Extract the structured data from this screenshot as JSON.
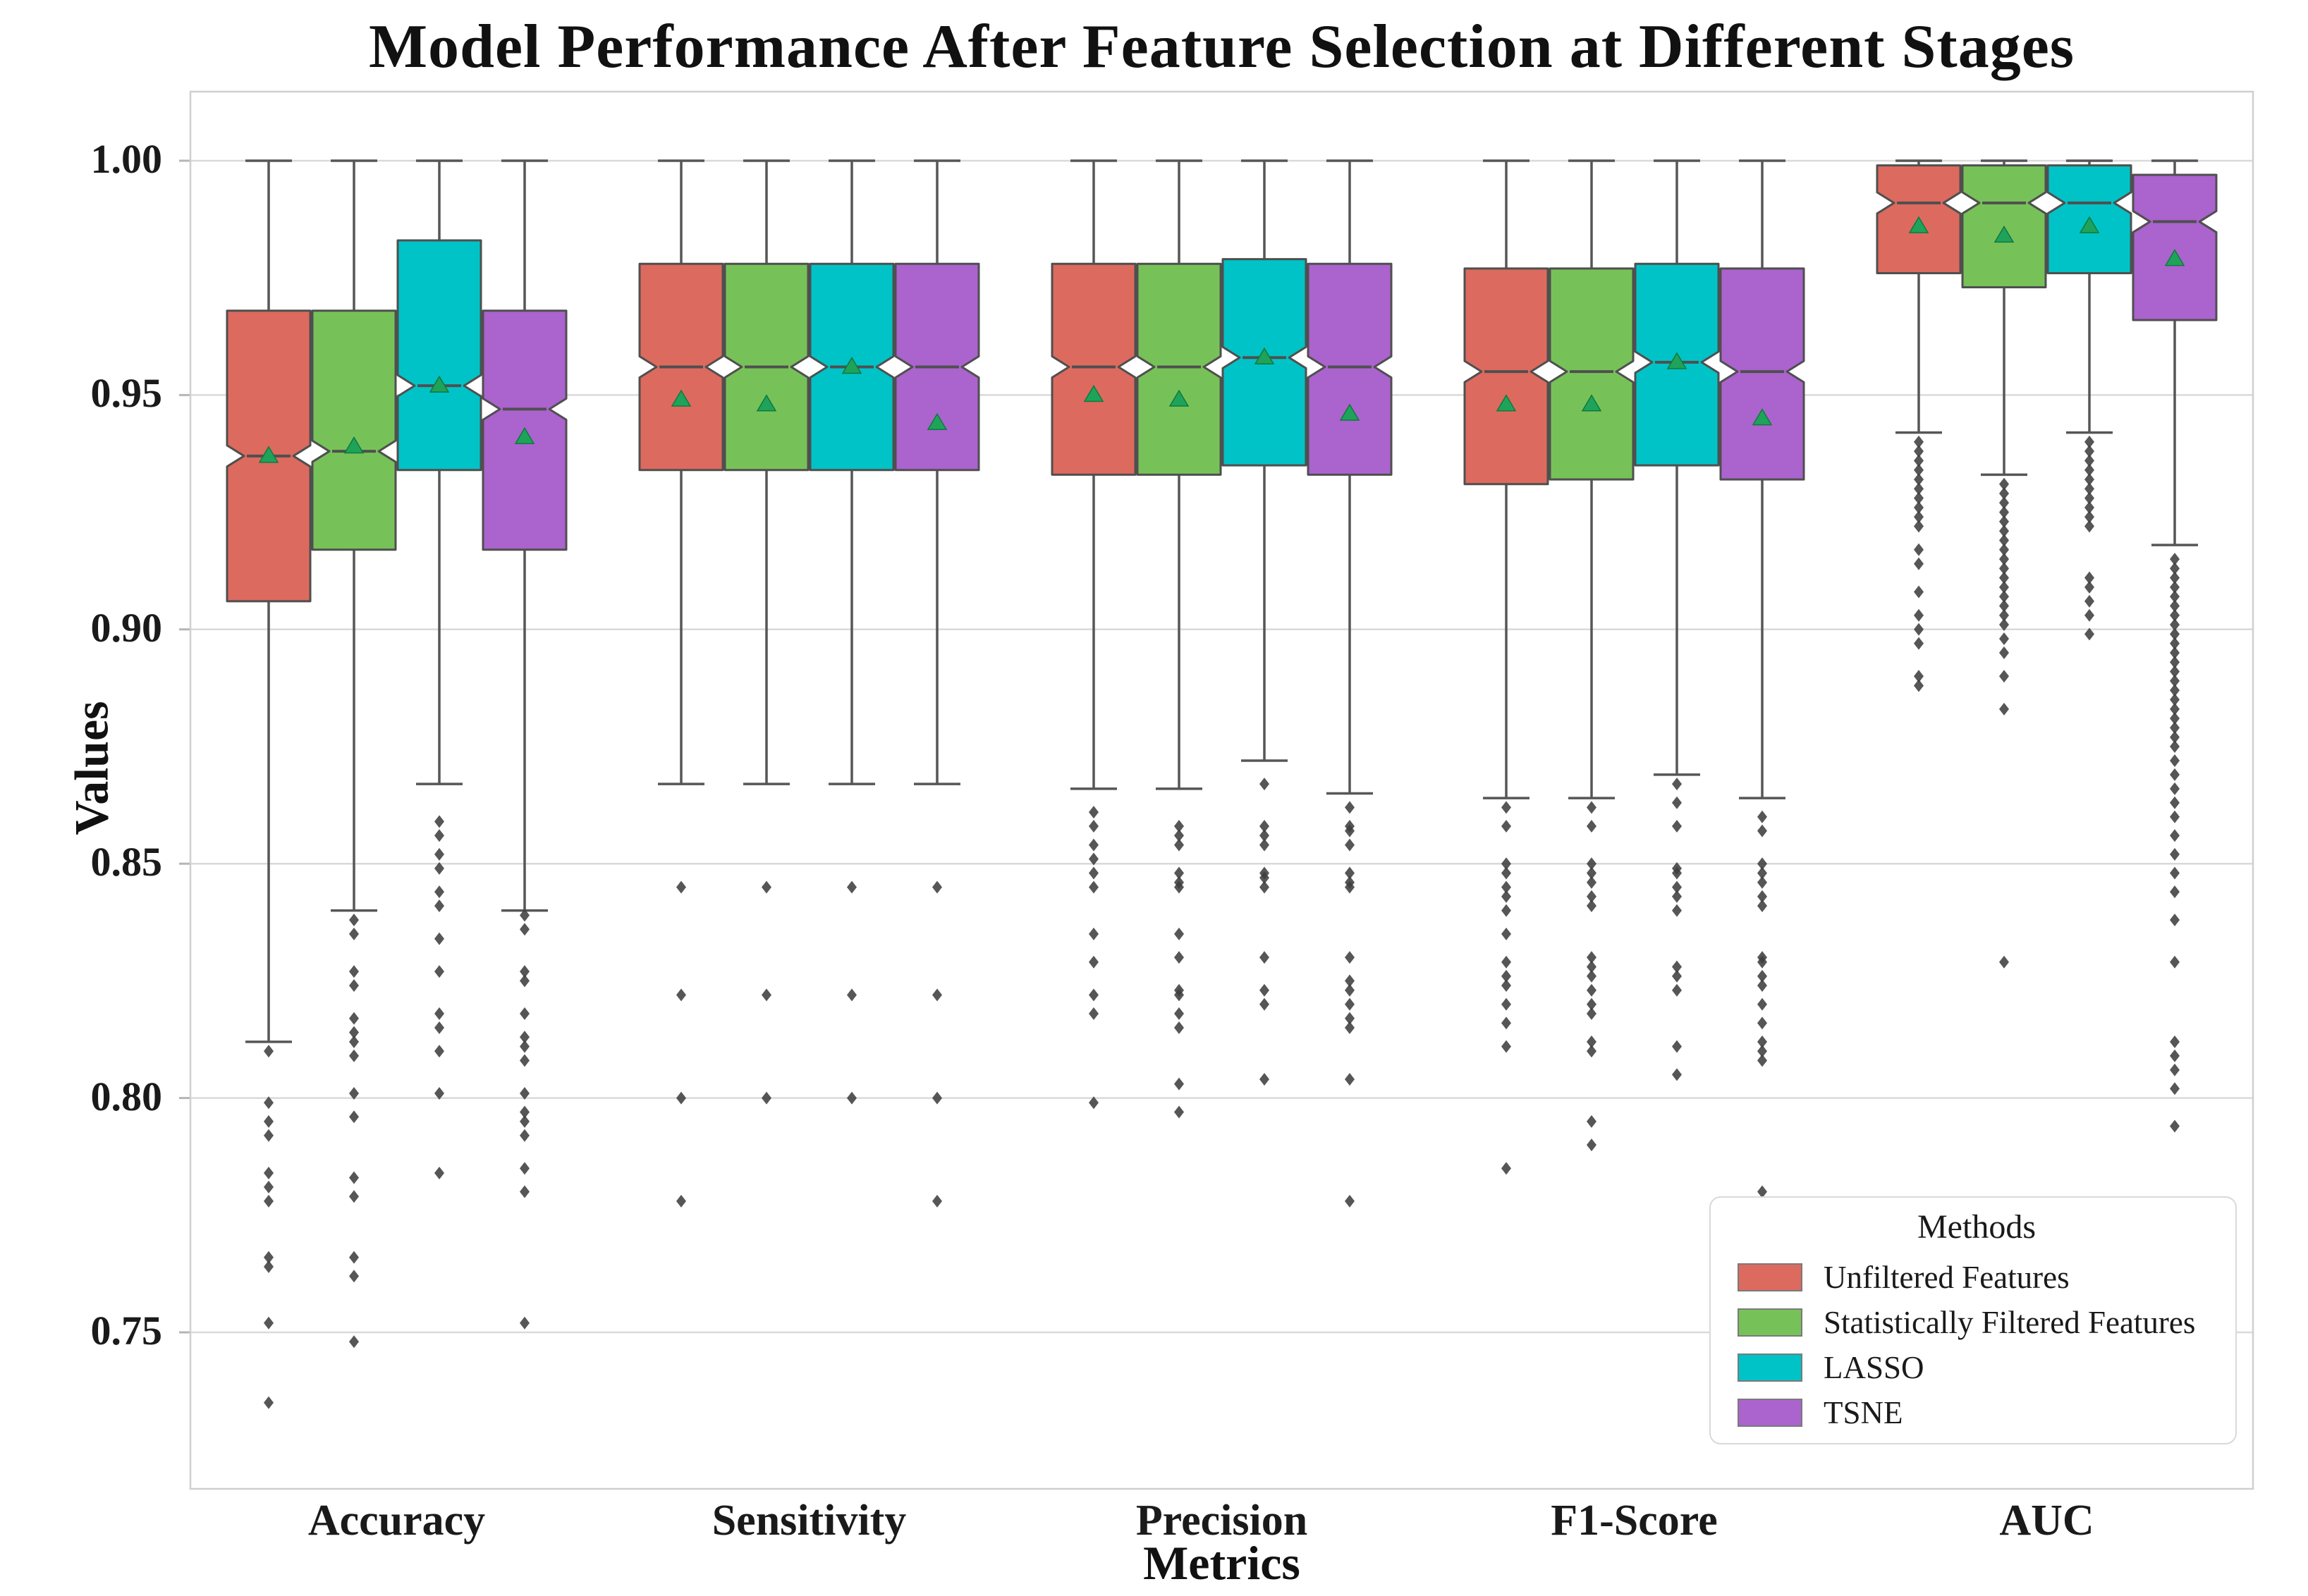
{
  "chart_data": {
    "type": "box",
    "title": "Model Performance After Feature Selection at Different Stages",
    "xlabel": "Metrics",
    "ylabel": "Values",
    "categories": [
      "Accuracy",
      "Sensitivity",
      "Precision",
      "F1-Score",
      "AUC"
    ],
    "ylim": [
      0.716,
      1.015
    ],
    "yticks": [
      1.0,
      0.95,
      0.9,
      0.85,
      0.8,
      0.75
    ],
    "ytick_labels": [
      "1.00",
      "0.95",
      "0.90",
      "0.85",
      "0.80",
      "0.75"
    ],
    "grid": true,
    "notched": true,
    "legend": {
      "title": "Methods",
      "position": "lower right"
    },
    "colors": {
      "edge": "#4f4f4f",
      "whisker": "#565656",
      "grid": "#d9d9d9",
      "spine": "#cfcfcf",
      "flier": "#3f3f3f",
      "mean_marker": "#1fa35b",
      "mean_marker_edge": "#0e7a3d"
    },
    "series": [
      {
        "name": "Unfiltered Features",
        "color": "#dd6a5e",
        "boxes": [
          {
            "category": "Accuracy",
            "whisker_low": 0.812,
            "q1": 0.906,
            "median": 0.937,
            "q3": 0.968,
            "whisker_high": 1.0,
            "mean": 0.937,
            "outliers": [
              0.81,
              0.799,
              0.795,
              0.792,
              0.784,
              0.781,
              0.778,
              0.766,
              0.764,
              0.752,
              0.735
            ]
          },
          {
            "category": "Sensitivity",
            "whisker_low": 0.867,
            "q1": 0.934,
            "median": 0.956,
            "q3": 0.978,
            "whisker_high": 1.0,
            "mean": 0.949,
            "outliers": [
              0.845,
              0.822,
              0.8,
              0.778
            ]
          },
          {
            "category": "Precision",
            "whisker_low": 0.866,
            "q1": 0.933,
            "median": 0.956,
            "q3": 0.978,
            "whisker_high": 1.0,
            "mean": 0.95,
            "outliers": [
              0.861,
              0.858,
              0.854,
              0.851,
              0.848,
              0.845,
              0.835,
              0.829,
              0.822,
              0.818,
              0.799
            ]
          },
          {
            "category": "F1-Score",
            "whisker_low": 0.864,
            "q1": 0.931,
            "median": 0.955,
            "q3": 0.977,
            "whisker_high": 1.0,
            "mean": 0.948,
            "outliers": [
              0.862,
              0.858,
              0.85,
              0.848,
              0.845,
              0.843,
              0.84,
              0.835,
              0.829,
              0.826,
              0.824,
              0.82,
              0.816,
              0.811,
              0.785
            ]
          },
          {
            "category": "AUC",
            "whisker_low": 0.942,
            "q1": 0.976,
            "median": 0.991,
            "q3": 0.999,
            "whisker_high": 1.0,
            "mean": 0.986,
            "outliers": [
              0.94,
              0.938,
              0.936,
              0.934,
              0.932,
              0.93,
              0.928,
              0.926,
              0.924,
              0.922,
              0.917,
              0.914,
              0.908,
              0.903,
              0.9,
              0.897,
              0.89,
              0.888
            ]
          }
        ]
      },
      {
        "name": "Statistically Filtered Features",
        "color": "#77c258",
        "boxes": [
          {
            "category": "Accuracy",
            "whisker_low": 0.84,
            "q1": 0.917,
            "median": 0.938,
            "q3": 0.968,
            "whisker_high": 1.0,
            "mean": 0.939,
            "outliers": [
              0.838,
              0.835,
              0.827,
              0.824,
              0.817,
              0.814,
              0.812,
              0.809,
              0.801,
              0.796,
              0.783,
              0.779,
              0.766,
              0.762,
              0.748
            ]
          },
          {
            "category": "Sensitivity",
            "whisker_low": 0.867,
            "q1": 0.934,
            "median": 0.956,
            "q3": 0.978,
            "whisker_high": 1.0,
            "mean": 0.948,
            "outliers": [
              0.845,
              0.822,
              0.8
            ]
          },
          {
            "category": "Precision",
            "whisker_low": 0.866,
            "q1": 0.933,
            "median": 0.956,
            "q3": 0.978,
            "whisker_high": 1.0,
            "mean": 0.949,
            "outliers": [
              0.858,
              0.856,
              0.854,
              0.848,
              0.846,
              0.845,
              0.835,
              0.83,
              0.823,
              0.822,
              0.818,
              0.815,
              0.803,
              0.797
            ]
          },
          {
            "category": "F1-Score",
            "whisker_low": 0.864,
            "q1": 0.932,
            "median": 0.955,
            "q3": 0.977,
            "whisker_high": 1.0,
            "mean": 0.948,
            "outliers": [
              0.862,
              0.858,
              0.85,
              0.848,
              0.846,
              0.843,
              0.841,
              0.83,
              0.828,
              0.826,
              0.823,
              0.82,
              0.818,
              0.812,
              0.81,
              0.795,
              0.79
            ]
          },
          {
            "category": "AUC",
            "whisker_low": 0.933,
            "q1": 0.973,
            "median": 0.991,
            "q3": 0.999,
            "whisker_high": 1.0,
            "mean": 0.984,
            "outliers": [
              0.931,
              0.929,
              0.927,
              0.925,
              0.923,
              0.921,
              0.919,
              0.917,
              0.915,
              0.913,
              0.911,
              0.909,
              0.907,
              0.905,
              0.903,
              0.901,
              0.898,
              0.895,
              0.89,
              0.883,
              0.829
            ]
          }
        ]
      },
      {
        "name": "LASSO",
        "color": "#00c3c7",
        "boxes": [
          {
            "category": "Accuracy",
            "whisker_low": 0.867,
            "q1": 0.934,
            "median": 0.952,
            "q3": 0.983,
            "whisker_high": 1.0,
            "mean": 0.952,
            "outliers": [
              0.859,
              0.856,
              0.852,
              0.849,
              0.844,
              0.841,
              0.834,
              0.827,
              0.818,
              0.815,
              0.81,
              0.801,
              0.784
            ]
          },
          {
            "category": "Sensitivity",
            "whisker_low": 0.867,
            "q1": 0.934,
            "median": 0.956,
            "q3": 0.978,
            "whisker_high": 1.0,
            "mean": 0.956,
            "outliers": [
              0.845,
              0.822,
              0.8
            ]
          },
          {
            "category": "Precision",
            "whisker_low": 0.872,
            "q1": 0.935,
            "median": 0.958,
            "q3": 0.979,
            "whisker_high": 1.0,
            "mean": 0.958,
            "outliers": [
              0.867,
              0.858,
              0.856,
              0.854,
              0.848,
              0.847,
              0.845,
              0.83,
              0.823,
              0.82,
              0.804
            ]
          },
          {
            "category": "F1-Score",
            "whisker_low": 0.869,
            "q1": 0.935,
            "median": 0.957,
            "q3": 0.978,
            "whisker_high": 1.0,
            "mean": 0.957,
            "outliers": [
              0.867,
              0.863,
              0.858,
              0.849,
              0.848,
              0.845,
              0.843,
              0.84,
              0.828,
              0.826,
              0.823,
              0.811,
              0.805
            ]
          },
          {
            "category": "AUC",
            "whisker_low": 0.942,
            "q1": 0.976,
            "median": 0.991,
            "q3": 0.999,
            "whisker_high": 1.0,
            "mean": 0.986,
            "outliers": [
              0.94,
              0.938,
              0.936,
              0.934,
              0.932,
              0.93,
              0.928,
              0.926,
              0.924,
              0.922,
              0.911,
              0.909,
              0.906,
              0.903,
              0.899
            ]
          }
        ]
      },
      {
        "name": "TSNE",
        "color": "#ab63ce",
        "boxes": [
          {
            "category": "Accuracy",
            "whisker_low": 0.84,
            "q1": 0.917,
            "median": 0.947,
            "q3": 0.968,
            "whisker_high": 1.0,
            "mean": 0.941,
            "outliers": [
              0.839,
              0.836,
              0.827,
              0.825,
              0.818,
              0.813,
              0.811,
              0.808,
              0.801,
              0.797,
              0.795,
              0.792,
              0.785,
              0.78,
              0.752
            ]
          },
          {
            "category": "Sensitivity",
            "whisker_low": 0.867,
            "q1": 0.934,
            "median": 0.956,
            "q3": 0.978,
            "whisker_high": 1.0,
            "mean": 0.944,
            "outliers": [
              0.845,
              0.822,
              0.8,
              0.778
            ]
          },
          {
            "category": "Precision",
            "whisker_low": 0.865,
            "q1": 0.933,
            "median": 0.956,
            "q3": 0.978,
            "whisker_high": 1.0,
            "mean": 0.946,
            "outliers": [
              0.862,
              0.858,
              0.857,
              0.854,
              0.848,
              0.846,
              0.845,
              0.83,
              0.825,
              0.823,
              0.82,
              0.817,
              0.815,
              0.804,
              0.778
            ]
          },
          {
            "category": "F1-Score",
            "whisker_low": 0.864,
            "q1": 0.932,
            "median": 0.955,
            "q3": 0.977,
            "whisker_high": 1.0,
            "mean": 0.945,
            "outliers": [
              0.86,
              0.857,
              0.85,
              0.848,
              0.846,
              0.843,
              0.841,
              0.83,
              0.829,
              0.826,
              0.824,
              0.82,
              0.816,
              0.812,
              0.81,
              0.808,
              0.78
            ]
          },
          {
            "category": "AUC",
            "whisker_low": 0.918,
            "q1": 0.966,
            "median": 0.987,
            "q3": 0.997,
            "whisker_high": 1.0,
            "mean": 0.979,
            "outliers": [
              0.915,
              0.913,
              0.911,
              0.909,
              0.907,
              0.905,
              0.903,
              0.901,
              0.899,
              0.897,
              0.895,
              0.893,
              0.891,
              0.889,
              0.887,
              0.885,
              0.883,
              0.881,
              0.879,
              0.877,
              0.875,
              0.872,
              0.869,
              0.866,
              0.863,
              0.86,
              0.856,
              0.852,
              0.848,
              0.844,
              0.838,
              0.829,
              0.812,
              0.809,
              0.806,
              0.802,
              0.794,
              0.772,
              0.762
            ]
          }
        ]
      }
    ]
  }
}
